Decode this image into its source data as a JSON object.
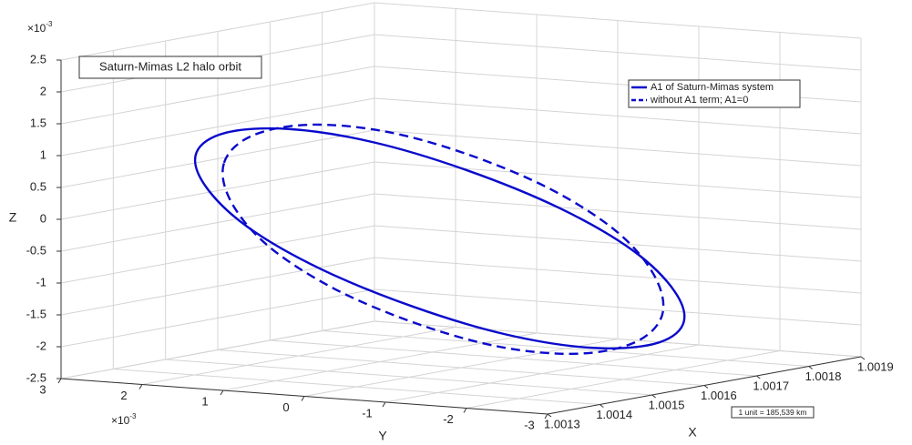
{
  "chart_data": {
    "type": "line3d",
    "title": "Saturn-Mimas L2 halo orbit",
    "xlabel": "X",
    "ylabel": "Y",
    "zlabel": "Z",
    "xlim": [
      1.0013,
      1.0019
    ],
    "xticks": [
      1.0013,
      1.0014,
      1.0015,
      1.0016,
      1.0017,
      1.0018,
      1.0019
    ],
    "ylim": [
      -3,
      3
    ],
    "yticks": [
      -3,
      -2,
      -1,
      0,
      1,
      2,
      3
    ],
    "zlim": [
      -2.5,
      2.5
    ],
    "zticks": [
      -2.5,
      -2,
      -1.5,
      -1,
      -0.5,
      0,
      0.5,
      1,
      1.5,
      2,
      2.5
    ],
    "y_multiplier": {
      "base": "×10",
      "exponent": "-3"
    },
    "z_multiplier": {
      "base": "×10",
      "exponent": "-3"
    },
    "grid": true,
    "legend": "upper right",
    "annotation": "1 unit = 185,539 km",
    "series": [
      {
        "name": "A1 of Saturn-Mimas system",
        "color": "#0a0acc",
        "line_style": "solid",
        "x": [
          1.00155,
          1.00157,
          1.00159,
          1.0016,
          1.0016,
          1.0016,
          1.00159,
          1.00157,
          1.00155,
          1.00153,
          1.00151,
          1.0015,
          1.0015,
          1.0015,
          1.00151,
          1.00153
        ],
        "y": [
          2.94,
          2.71,
          2.06,
          1.09,
          -0.06,
          -1.21,
          -2.18,
          -2.83,
          -3.06,
          -2.83,
          -2.18,
          -1.21,
          -0.06,
          1.09,
          2.06,
          2.71
        ],
        "z": [
          0.68,
          0.98,
          1.07,
          0.94,
          0.61,
          0.12,
          -0.44,
          -1.0,
          -1.46,
          -1.76,
          -1.85,
          -1.72,
          -1.39,
          -0.9,
          -0.34,
          0.22
        ]
      },
      {
        "name": "without A1 term; A1=0",
        "color": "#0a0acc",
        "line_style": "dashed",
        "x": [
          1.00155,
          1.00157,
          1.00159,
          1.0016,
          1.0016,
          1.0016,
          1.00159,
          1.00157,
          1.00155,
          1.00153,
          1.00151,
          1.0015,
          1.0015,
          1.0015,
          1.00151,
          1.00153
        ],
        "y": [
          2.6,
          2.39,
          1.81,
          0.93,
          -0.1,
          -1.13,
          -2.01,
          -2.59,
          -2.8,
          -2.59,
          -2.01,
          -1.13,
          -0.1,
          0.93,
          1.81,
          2.39
        ],
        "z": [
          0.55,
          0.96,
          1.16,
          1.12,
          0.85,
          0.39,
          -0.19,
          -0.8,
          -1.35,
          -1.76,
          -1.96,
          -1.92,
          -1.65,
          -1.19,
          -0.61,
          0.0
        ]
      }
    ]
  }
}
